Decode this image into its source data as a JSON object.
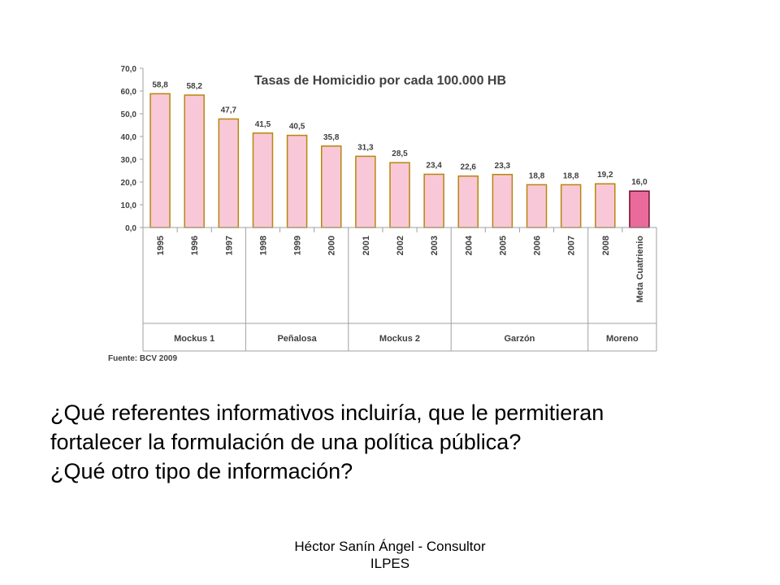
{
  "chart_data": {
    "type": "bar",
    "title": "Tasas de Homicidio por cada 100.000 HB",
    "categories": [
      "1995",
      "1996",
      "1997",
      "1998",
      "1999",
      "2000",
      "2001",
      "2002",
      "2003",
      "2004",
      "2005",
      "2006",
      "2007",
      "2008",
      "Meta Cuatrienio"
    ],
    "values": [
      58.8,
      58.2,
      47.7,
      41.5,
      40.5,
      35.8,
      31.3,
      28.5,
      23.4,
      22.6,
      23.3,
      18.8,
      18.8,
      19.2,
      16.0
    ],
    "value_labels": [
      "58,8",
      "58,2",
      "47,7",
      "41,5",
      "40,5",
      "35,8",
      "31,3",
      "28,5",
      "23,4",
      "22,6",
      "23,3",
      "18,8",
      "18,8",
      "19,2",
      "16,0"
    ],
    "y_ticks": [
      "0,0",
      "10,0",
      "20,0",
      "30,0",
      "40,0",
      "50,0",
      "60,0",
      "70,0"
    ],
    "ylim": [
      0,
      70
    ],
    "groups": [
      {
        "label": "Mockus 1",
        "count": 3
      },
      {
        "label": "Peñalosa",
        "count": 3
      },
      {
        "label": "Mockus 2",
        "count": 3
      },
      {
        "label": "Garzón",
        "count": 4
      },
      {
        "label": "Moreno",
        "count": 2
      }
    ],
    "bar_color": "#f8c8d8",
    "bar_border": "#b8860b",
    "highlight_color": "#ea6a9c",
    "highlight_index": 14,
    "grid": false,
    "source": "Fuente: BCV 2009"
  },
  "question": {
    "line1": "¿Qué referentes informativos incluiría, que le permitieran",
    "line2": "fortalecer la formulación de una política pública?",
    "line3": "¿Qué otro tipo de información?"
  },
  "footer": {
    "line1": "Héctor Sanín Ángel - Consultor",
    "line2": "ILPES"
  }
}
